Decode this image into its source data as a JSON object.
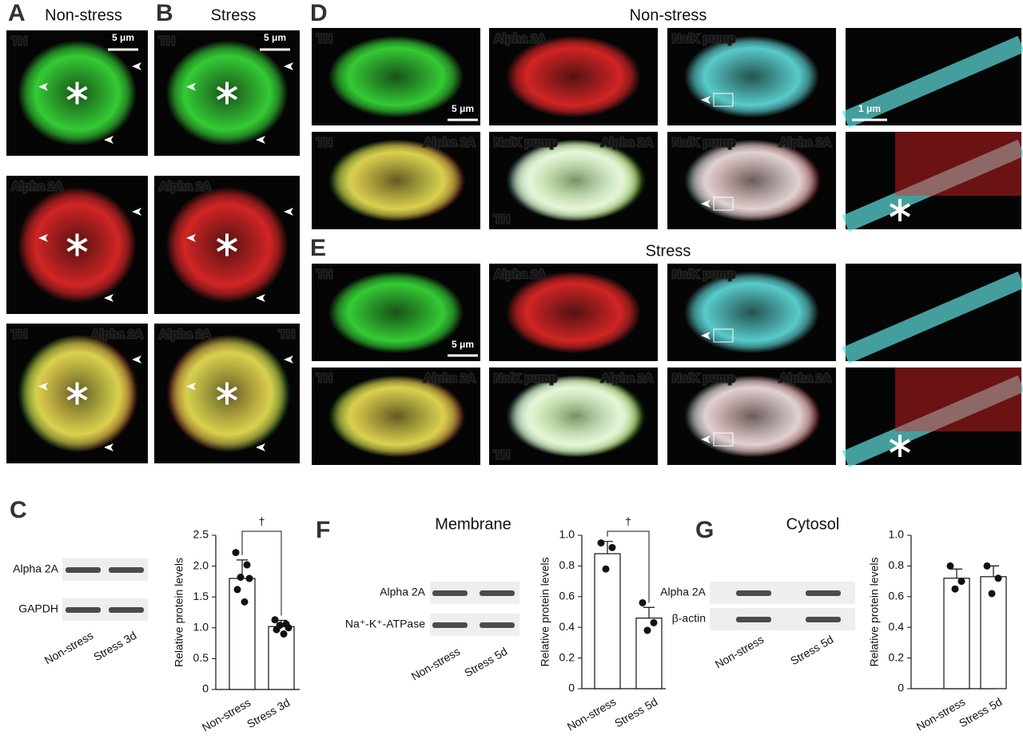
{
  "images": {
    "A": {
      "label": "A",
      "title": "Non-stress",
      "scale_bar": "5 μm",
      "tiles": [
        [
          {
            "text": "TH",
            "color": "#36e036"
          }
        ],
        [
          {
            "text": "Alpha 2A",
            "color": "#e82424"
          }
        ],
        [
          {
            "text": "TH",
            "color": "#36e036"
          },
          {
            "text": "Alpha 2A",
            "color": "#e82424"
          }
        ]
      ]
    },
    "B": {
      "label": "B",
      "title": "Stress",
      "scale_bar": "5 μm",
      "tiles": [
        [
          {
            "text": "TH",
            "color": "#36e036"
          }
        ],
        [
          {
            "text": "Alpha 2A",
            "color": "#e82424"
          }
        ],
        [
          {
            "text": "Alpha 2A",
            "color": "#e82424"
          },
          {
            "text": "TH",
            "color": "#36e036"
          }
        ]
      ]
    },
    "D": {
      "label": "D",
      "title": "Non-stress",
      "scale_bar": "5 μm",
      "zoom_scale_bar": "1 μm",
      "tiles": [
        [
          {
            "text": "TH",
            "color": "#36e036"
          }
        ],
        [
          {
            "text": "Alpha 2A",
            "color": "#e82424"
          }
        ],
        [
          {
            "text": "Na/K pump",
            "color": "#5fe0e0"
          }
        ],
        [
          {
            "text": "TH",
            "color": "#36e036"
          },
          {
            "text": "Alpha 2A",
            "color": "#e82424"
          }
        ],
        [
          {
            "text": "Na/K pump",
            "color": "#5fe0e0"
          },
          {
            "text": "Alpha 2A",
            "color": "#e82424"
          },
          {
            "text": "TH",
            "color": "#36e036"
          }
        ],
        [
          {
            "text": "Na/K pump",
            "color": "#5fe0e0"
          },
          {
            "text": "Alpha 2A",
            "color": "#e82424"
          }
        ]
      ]
    },
    "E": {
      "label": "E",
      "title": "Stress",
      "scale_bar": "5 μm",
      "tiles": [
        [
          {
            "text": "TH",
            "color": "#36e036"
          }
        ],
        [
          {
            "text": "Alpha 2A",
            "color": "#e82424"
          }
        ],
        [
          {
            "text": "Na/K pump",
            "color": "#5fe0e0"
          }
        ],
        [
          {
            "text": "TH",
            "color": "#36e036"
          },
          {
            "text": "Alpha 2A",
            "color": "#e82424"
          }
        ],
        [
          {
            "text": "Na/K pump",
            "color": "#5fe0e0"
          },
          {
            "text": "Alpha 2A",
            "color": "#e82424"
          },
          {
            "text": "TH",
            "color": "#36e036"
          }
        ],
        [
          {
            "text": "Na/K pump",
            "color": "#5fe0e0"
          },
          {
            "text": "Alpha 2A",
            "color": "#e82424"
          }
        ]
      ]
    }
  },
  "chart_data": [
    {
      "type": "bar",
      "label": "C",
      "ylabel": "Relative protein levels",
      "annotation": "†",
      "blot": {
        "rows": [
          "Alpha 2A",
          "GAPDH"
        ],
        "lanes": [
          "Non-stress",
          "Stress 3d"
        ]
      },
      "categories": [
        "Non-stress",
        "Stress 3d"
      ],
      "values": [
        1.8,
        1.02
      ],
      "errors": [
        0.3,
        0.1
      ],
      "points": [
        [
          2.22,
          2.02,
          1.82,
          1.8,
          1.62,
          1.42
        ],
        [
          1.13,
          1.06,
          1.04,
          1.0,
          0.97,
          0.9
        ]
      ],
      "color": "#ffffff",
      "ylim": [
        0,
        2.5
      ],
      "yticks": [
        0,
        0.5,
        {
          "value": 1,
          "label": "1.0"
        },
        1.5,
        {
          "value": 2,
          "label": "2.0"
        },
        2.5
      ]
    },
    {
      "type": "bar",
      "label": "F",
      "title": "Membrane",
      "ylabel": "Relative protein levels",
      "annotation": "†",
      "blot": {
        "rows": [
          "Alpha 2A",
          "Na⁺-K⁺-ATPase"
        ],
        "lanes": [
          "Non-stress",
          "Stress 5d"
        ]
      },
      "categories": [
        "Non-stress",
        "Stress 5d"
      ],
      "values": [
        0.88,
        0.46
      ],
      "errors": [
        0.08,
        0.07
      ],
      "points": [
        [
          0.95,
          0.92,
          0.78
        ],
        [
          0.56,
          0.43,
          0.38
        ]
      ],
      "color": "#ffffff",
      "ylim": [
        0,
        1
      ],
      "yticks": [
        0,
        0.2,
        0.4,
        0.6,
        0.8,
        {
          "value": 1,
          "label": "1.0"
        }
      ]
    },
    {
      "type": "bar",
      "label": "G",
      "title": "Cytosol",
      "ylabel": "Relative protein levels",
      "blot": {
        "rows": [
          "Alpha 2A",
          "β-actin"
        ],
        "lanes": [
          "Non-stress",
          "Stress 5d"
        ]
      },
      "categories": [
        "Non-stress",
        "Stress 5d"
      ],
      "values": [
        0.72,
        0.73
      ],
      "errors": [
        0.06,
        0.07
      ],
      "points": [
        [
          0.8,
          0.7,
          0.65
        ],
        [
          0.8,
          0.72,
          0.62
        ]
      ],
      "color": "#ffffff",
      "ylim": [
        0,
        1
      ],
      "yticks": [
        0,
        0.2,
        0.4,
        0.6,
        0.8,
        {
          "value": 1,
          "label": "1.0"
        }
      ]
    }
  ]
}
